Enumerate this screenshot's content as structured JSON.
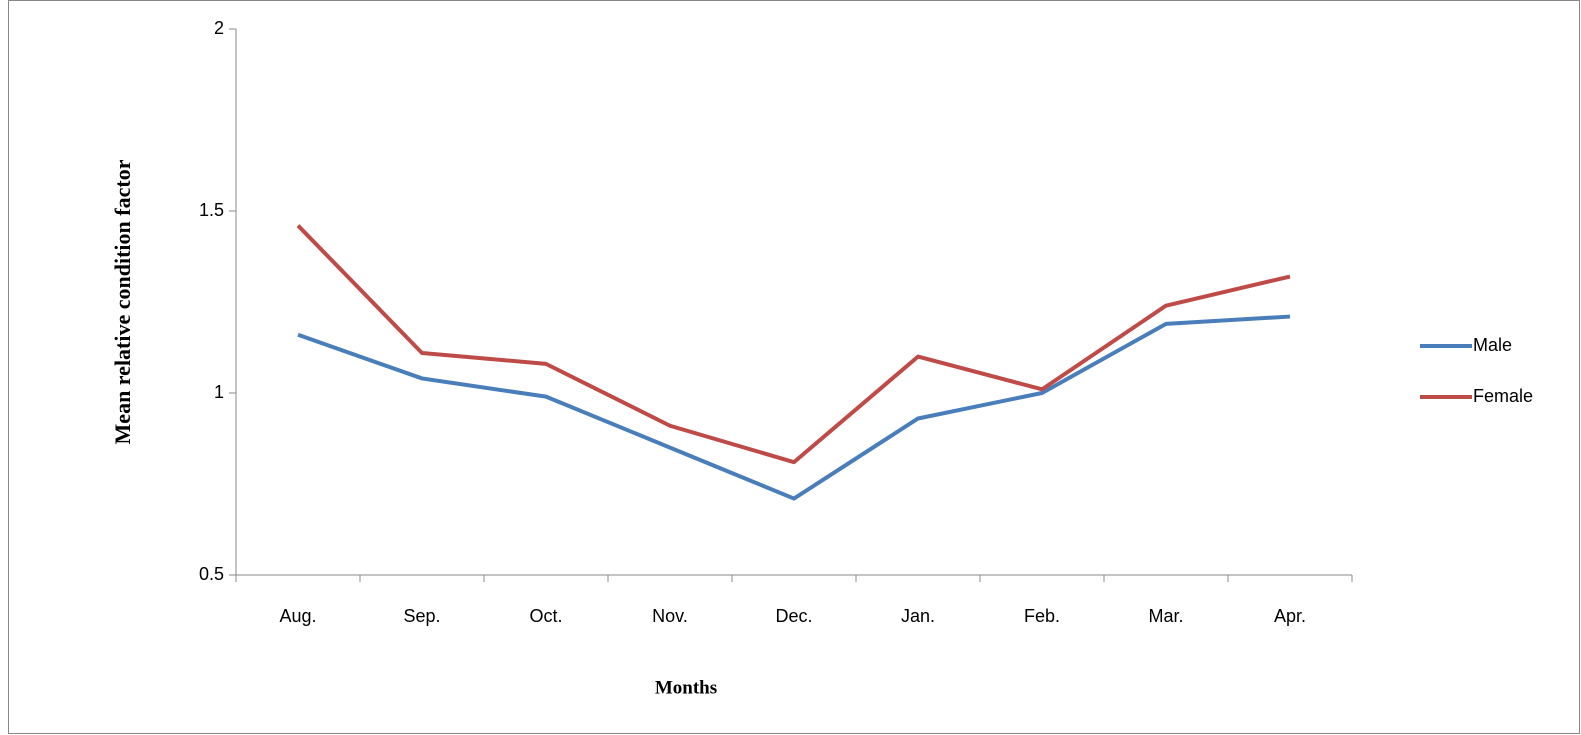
{
  "chart_data": {
    "type": "line",
    "x_label": "Months",
    "y_label": "Mean relative condition factor",
    "categories": [
      "Aug.",
      "Sep.",
      "Oct.",
      "Nov.",
      "Dec.",
      "Jan.",
      "Feb.",
      "Mar.",
      "Apr."
    ],
    "series": [
      {
        "name": "Male",
        "color": "#4a7ebb",
        "values": [
          1.16,
          1.04,
          0.99,
          0.85,
          0.71,
          0.93,
          1.0,
          1.19,
          1.21
        ]
      },
      {
        "name": "Female",
        "color": "#be4b48",
        "values": [
          1.46,
          1.11,
          1.08,
          0.91,
          0.81,
          1.1,
          1.01,
          1.24,
          1.32
        ]
      }
    ],
    "ylim": [
      0.5,
      2
    ],
    "yticks": [
      0.5,
      1,
      1.5,
      2
    ],
    "grid": false,
    "legend": "right"
  }
}
